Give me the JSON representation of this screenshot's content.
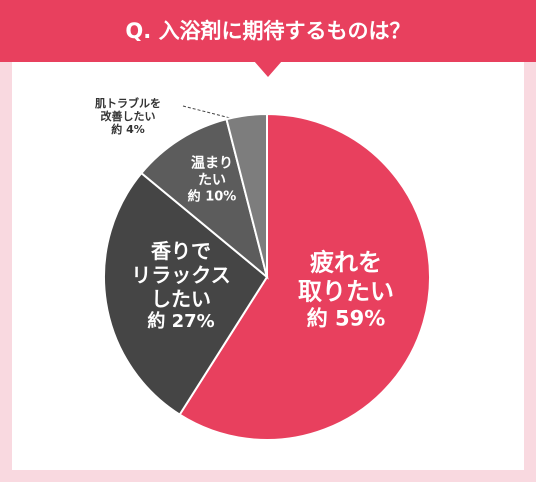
{
  "chart_data": {
    "type": "pie",
    "title": "Q. 入浴剤に期待するものは？",
    "categories": [
      "疲れを\n取りたい",
      "香りで\nリラックス\nしたい",
      "温まり\nたい",
      "肌トラブルを\n改善したい"
    ],
    "values": [
      59,
      27,
      10,
      4
    ],
    "value_labels": [
      "約 59%",
      "約 27%",
      "約 10%",
      "約 4%"
    ],
    "colors": [
      "#e8405e",
      "#454545",
      "#5c5c5c",
      "#7d7d7d"
    ]
  }
}
